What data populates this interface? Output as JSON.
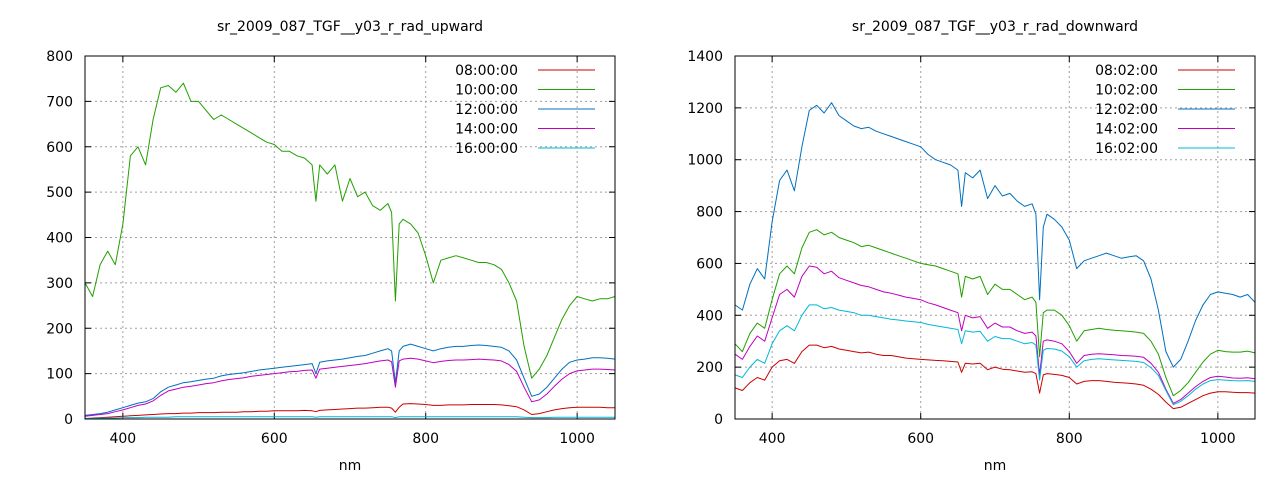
{
  "chart_data": [
    {
      "type": "line",
      "title": "sr_2009_087_TGF__y03_r_rad_upward",
      "xlabel": "nm",
      "ylabel": "",
      "xlim": [
        350,
        1050
      ],
      "ylim": [
        0,
        800
      ],
      "xticks": [
        400,
        600,
        800,
        1000
      ],
      "yticks": [
        0,
        100,
        200,
        300,
        400,
        500,
        600,
        700,
        800
      ],
      "grid": true,
      "legend": "top-right",
      "x": [
        350,
        360,
        370,
        380,
        390,
        400,
        410,
        420,
        430,
        440,
        450,
        460,
        470,
        480,
        490,
        500,
        510,
        520,
        530,
        540,
        550,
        560,
        570,
        580,
        590,
        600,
        610,
        620,
        630,
        640,
        650,
        655,
        660,
        670,
        680,
        690,
        700,
        710,
        720,
        730,
        740,
        750,
        755,
        760,
        765,
        770,
        780,
        790,
        800,
        810,
        820,
        830,
        840,
        850,
        860,
        870,
        880,
        890,
        900,
        910,
        920,
        930,
        940,
        950,
        960,
        970,
        980,
        990,
        1000,
        1010,
        1020,
        1030,
        1040,
        1050
      ],
      "series": [
        {
          "name": "08:00:00",
          "color": "#cc0000",
          "values": [
            1,
            2,
            3,
            4,
            5,
            6,
            7,
            8,
            9,
            10,
            11,
            12,
            12,
            13,
            13,
            14,
            14,
            14,
            15,
            15,
            15,
            16,
            16,
            17,
            17,
            18,
            18,
            18,
            18,
            19,
            18,
            16,
            19,
            20,
            21,
            22,
            23,
            24,
            24,
            25,
            26,
            26,
            24,
            15,
            26,
            33,
            34,
            33,
            32,
            30,
            30,
            31,
            31,
            31,
            32,
            32,
            32,
            32,
            31,
            29,
            27,
            20,
            10,
            12,
            16,
            20,
            23,
            25,
            26,
            26,
            26,
            26,
            25,
            25
          ]
        },
        {
          "name": "10:00:00",
          "color": "#22a000",
          "values": [
            300,
            270,
            340,
            370,
            340,
            430,
            580,
            600,
            560,
            660,
            730,
            735,
            720,
            740,
            700,
            700,
            680,
            660,
            670,
            660,
            650,
            640,
            630,
            620,
            610,
            605,
            590,
            590,
            580,
            575,
            560,
            480,
            560,
            540,
            560,
            480,
            530,
            490,
            500,
            470,
            460,
            475,
            455,
            260,
            430,
            440,
            430,
            410,
            360,
            300,
            350,
            355,
            360,
            355,
            350,
            345,
            345,
            340,
            330,
            300,
            260,
            160,
            90,
            110,
            140,
            180,
            220,
            250,
            270,
            265,
            260,
            265,
            265,
            270
          ]
        },
        {
          "name": "12:00:00",
          "color": "#0070c0",
          "values": [
            8,
            10,
            12,
            15,
            20,
            25,
            30,
            35,
            38,
            45,
            60,
            70,
            75,
            80,
            82,
            85,
            88,
            90,
            95,
            98,
            100,
            102,
            105,
            108,
            110,
            112,
            114,
            116,
            118,
            120,
            122,
            100,
            125,
            128,
            130,
            132,
            135,
            138,
            140,
            145,
            150,
            155,
            150,
            80,
            150,
            160,
            165,
            160,
            155,
            150,
            155,
            158,
            160,
            160,
            162,
            163,
            162,
            160,
            158,
            150,
            130,
            90,
            50,
            55,
            70,
            90,
            110,
            125,
            130,
            132,
            135,
            135,
            134,
            132
          ]
        },
        {
          "name": "14:00:00",
          "color": "#c000c0",
          "values": [
            6,
            8,
            10,
            12,
            16,
            20,
            25,
            30,
            33,
            40,
            52,
            62,
            66,
            70,
            72,
            75,
            78,
            80,
            84,
            87,
            89,
            91,
            94,
            96,
            98,
            100,
            102,
            104,
            105,
            107,
            108,
            90,
            110,
            112,
            114,
            116,
            118,
            120,
            122,
            125,
            128,
            130,
            126,
            70,
            128,
            132,
            134,
            132,
            128,
            124,
            127,
            129,
            130,
            130,
            131,
            132,
            131,
            130,
            128,
            120,
            105,
            70,
            38,
            42,
            55,
            72,
            88,
            100,
            106,
            108,
            110,
            110,
            109,
            108
          ]
        },
        {
          "name": "16:00:00",
          "color": "#00b8d8",
          "values": [
            1,
            1,
            2,
            2,
            2,
            3,
            3,
            3,
            4,
            4,
            4,
            4,
            5,
            5,
            5,
            5,
            5,
            5,
            5,
            5,
            5,
            5,
            5,
            5,
            5,
            5,
            5,
            5,
            5,
            5,
            5,
            4,
            5,
            5,
            5,
            5,
            5,
            5,
            5,
            5,
            5,
            5,
            5,
            3,
            5,
            5,
            5,
            5,
            5,
            5,
            5,
            5,
            5,
            5,
            5,
            5,
            5,
            5,
            5,
            5,
            5,
            4,
            3,
            3,
            3,
            4,
            4,
            4,
            4,
            4,
            4,
            4,
            4,
            4
          ]
        }
      ]
    },
    {
      "type": "line",
      "title": "sr_2009_087_TGF__y03_r_rad_downward",
      "xlabel": "nm",
      "ylabel": "",
      "xlim": [
        350,
        1050
      ],
      "ylim": [
        0,
        1400
      ],
      "xticks": [
        400,
        600,
        800,
        1000
      ],
      "yticks": [
        0,
        200,
        400,
        600,
        800,
        1000,
        1200,
        1400
      ],
      "grid": true,
      "legend": "top-right",
      "x": [
        350,
        360,
        370,
        380,
        390,
        400,
        410,
        420,
        430,
        440,
        450,
        460,
        470,
        480,
        490,
        500,
        510,
        520,
        530,
        540,
        550,
        560,
        570,
        580,
        590,
        600,
        610,
        620,
        630,
        640,
        650,
        655,
        660,
        670,
        680,
        690,
        700,
        710,
        720,
        730,
        740,
        750,
        755,
        760,
        765,
        770,
        780,
        790,
        800,
        810,
        820,
        830,
        840,
        850,
        860,
        870,
        880,
        890,
        900,
        910,
        920,
        930,
        940,
        950,
        960,
        970,
        980,
        990,
        1000,
        1010,
        1020,
        1030,
        1040,
        1050
      ],
      "series": [
        {
          "name": "08:02:00",
          "color": "#cc0000",
          "values": [
            120,
            110,
            140,
            160,
            150,
            200,
            225,
            230,
            215,
            260,
            285,
            285,
            275,
            280,
            270,
            265,
            260,
            255,
            258,
            250,
            245,
            245,
            240,
            235,
            232,
            230,
            228,
            226,
            225,
            222,
            220,
            180,
            215,
            212,
            215,
            190,
            200,
            192,
            190,
            185,
            180,
            182,
            175,
            100,
            170,
            175,
            172,
            168,
            160,
            135,
            145,
            148,
            148,
            145,
            142,
            140,
            138,
            135,
            130,
            115,
            95,
            65,
            40,
            45,
            60,
            75,
            90,
            100,
            105,
            105,
            103,
            102,
            102,
            100
          ]
        },
        {
          "name": "10:02:00",
          "color": "#22a000",
          "values": [
            290,
            260,
            330,
            370,
            350,
            460,
            560,
            590,
            560,
            660,
            720,
            730,
            710,
            720,
            700,
            690,
            680,
            665,
            670,
            660,
            650,
            640,
            630,
            620,
            610,
            600,
            595,
            590,
            580,
            570,
            560,
            470,
            550,
            540,
            550,
            480,
            520,
            500,
            500,
            480,
            460,
            470,
            450,
            240,
            410,
            420,
            420,
            400,
            360,
            300,
            340,
            345,
            350,
            345,
            342,
            340,
            338,
            335,
            330,
            300,
            250,
            160,
            90,
            110,
            140,
            180,
            220,
            250,
            265,
            260,
            258,
            258,
            262,
            255
          ]
        },
        {
          "name": "12:02:00",
          "color": "#0070c0",
          "values": [
            440,
            420,
            520,
            580,
            540,
            760,
            920,
            960,
            880,
            1050,
            1190,
            1210,
            1180,
            1220,
            1170,
            1150,
            1130,
            1120,
            1125,
            1110,
            1100,
            1090,
            1080,
            1070,
            1060,
            1050,
            1020,
            1000,
            990,
            980,
            960,
            820,
            950,
            930,
            960,
            850,
            900,
            860,
            870,
            840,
            820,
            830,
            790,
            460,
            740,
            790,
            770,
            740,
            690,
            580,
            610,
            620,
            630,
            640,
            630,
            620,
            625,
            630,
            610,
            540,
            420,
            260,
            200,
            230,
            300,
            380,
            440,
            480,
            490,
            485,
            480,
            470,
            480,
            450
          ]
        },
        {
          "name": "14:02:00",
          "color": "#c000c0",
          "values": [
            250,
            230,
            280,
            320,
            300,
            390,
            480,
            500,
            470,
            550,
            590,
            585,
            560,
            570,
            545,
            535,
            525,
            515,
            510,
            500,
            490,
            485,
            478,
            470,
            465,
            460,
            448,
            440,
            430,
            420,
            410,
            340,
            400,
            390,
            395,
            350,
            370,
            355,
            355,
            340,
            330,
            335,
            320,
            170,
            300,
            305,
            300,
            290,
            260,
            215,
            245,
            250,
            252,
            250,
            248,
            245,
            244,
            242,
            238,
            215,
            180,
            115,
            60,
            75,
            100,
            125,
            145,
            160,
            165,
            162,
            158,
            157,
            159,
            155
          ]
        },
        {
          "name": "16:02:00",
          "color": "#00b8d8",
          "values": [
            170,
            160,
            200,
            230,
            215,
            290,
            340,
            360,
            340,
            400,
            440,
            440,
            425,
            430,
            420,
            415,
            410,
            400,
            400,
            395,
            390,
            385,
            382,
            378,
            375,
            372,
            365,
            360,
            355,
            350,
            345,
            290,
            340,
            335,
            338,
            300,
            318,
            310,
            310,
            300,
            290,
            295,
            285,
            150,
            265,
            272,
            270,
            262,
            240,
            200,
            225,
            230,
            232,
            230,
            228,
            226,
            224,
            222,
            218,
            198,
            168,
            110,
            55,
            68,
            90,
            115,
            135,
            148,
            152,
            150,
            148,
            147,
            148,
            145
          ]
        }
      ]
    }
  ]
}
